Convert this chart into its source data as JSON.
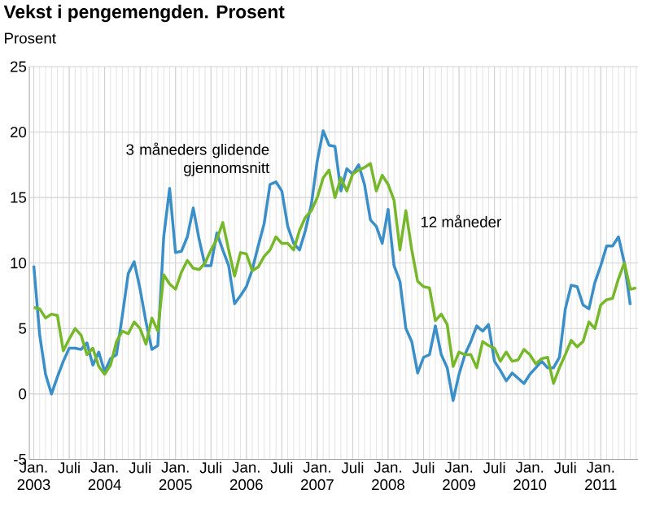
{
  "chart_data": {
    "type": "line",
    "title": "Vekst i pengemengden. Prosent",
    "ylabel": "Prosent",
    "categories": [
      "Jan. 2003",
      null,
      null,
      null,
      null,
      null,
      "Juli",
      null,
      null,
      null,
      null,
      null,
      "Jan. 2004",
      null,
      null,
      null,
      null,
      null,
      "Juli",
      null,
      null,
      null,
      null,
      null,
      "Jan. 2005",
      null,
      null,
      null,
      null,
      null,
      "Juli",
      null,
      null,
      null,
      null,
      null,
      "Jan. 2006",
      null,
      null,
      null,
      null,
      null,
      "Juli",
      null,
      null,
      null,
      null,
      null,
      "Jan. 2007",
      null,
      null,
      null,
      null,
      null,
      "Juli",
      null,
      null,
      null,
      null,
      null,
      "Jan. 2008",
      null,
      null,
      null,
      null,
      null,
      "Juli",
      null,
      null,
      null,
      null,
      null,
      "Jan. 2009",
      null,
      null,
      null,
      null,
      null,
      "Juli",
      null,
      null,
      null,
      null,
      null,
      "Jan. 2010",
      null,
      null,
      null,
      null,
      null,
      "Juli",
      null,
      null,
      null,
      null,
      null,
      "Jan. 2011",
      null,
      null,
      null,
      null,
      null,
      null
    ],
    "series": [
      {
        "name": "3 måneders glidende gjennomsnitt",
        "color": "#3a8fc8",
        "values": [
          9.8,
          4.5,
          1.5,
          0.0,
          1.3,
          2.5,
          3.5,
          3.5,
          3.4,
          3.9,
          2.2,
          3.2,
          1.7,
          2.7,
          3.0,
          6.0,
          9.2,
          10.1,
          8.0,
          5.5,
          3.4,
          3.7,
          12.0,
          15.7,
          10.8,
          10.9,
          12.0,
          14.2,
          11.8,
          9.8,
          9.8,
          12.3,
          11.0,
          9.8,
          6.9,
          7.5,
          8.2,
          9.5,
          11.3,
          13.0,
          16.0,
          16.2,
          15.5,
          12.8,
          11.5,
          11.0,
          12.5,
          14.5,
          17.8,
          20.1,
          19.0,
          18.9,
          15.5,
          17.2,
          16.8,
          17.5,
          16.0,
          13.3,
          12.8,
          11.5,
          14.1,
          9.8,
          8.6,
          5.0,
          4.0,
          1.6,
          2.8,
          3.0,
          5.2,
          3.0,
          2.0,
          -0.5,
          1.5,
          3.0,
          4.0,
          5.2,
          4.8,
          5.3,
          2.5,
          1.8,
          1.0,
          1.6,
          1.2,
          0.8,
          1.5,
          2.0,
          2.5,
          2.0,
          2.0,
          2.8,
          6.5,
          8.3,
          8.2,
          6.8,
          6.5,
          8.5,
          9.8,
          11.3,
          11.3,
          12.0,
          10.0,
          6.8,
          null
        ]
      },
      {
        "name": "12 måneder",
        "color": "#76b82a",
        "values": [
          6.6,
          6.5,
          5.8,
          6.1,
          6.0,
          3.3,
          4.2,
          5.0,
          4.5,
          3.0,
          3.5,
          2.1,
          1.5,
          2.2,
          4.0,
          4.8,
          4.6,
          5.5,
          5.0,
          3.8,
          5.8,
          4.8,
          9.1,
          8.4,
          8.0,
          9.3,
          10.2,
          9.6,
          9.5,
          10.0,
          11.0,
          11.8,
          13.1,
          11.0,
          9.0,
          10.8,
          10.7,
          9.4,
          9.7,
          10.5,
          11.0,
          12.0,
          11.5,
          11.5,
          11.0,
          12.5,
          13.5,
          14.0,
          15.0,
          16.5,
          17.1,
          15.0,
          16.5,
          15.5,
          16.8,
          17.1,
          17.3,
          17.6,
          15.5,
          16.7,
          16.0,
          14.8,
          11.0,
          14.0,
          11.0,
          8.6,
          8.2,
          8.1,
          5.6,
          6.1,
          5.3,
          2.1,
          3.2,
          3.0,
          3.0,
          2.0,
          4.0,
          3.7,
          3.5,
          2.5,
          3.2,
          2.5,
          2.6,
          3.4,
          3.0,
          2.3,
          2.7,
          2.8,
          0.8,
          2.0,
          3.0,
          4.1,
          3.6,
          4.0,
          5.5,
          5.0,
          6.8,
          7.2,
          7.3,
          8.8,
          10.0,
          8.0,
          8.1
        ]
      }
    ],
    "ylim": [
      -5,
      25
    ],
    "yticks": [
      -5,
      0,
      5,
      10,
      15,
      20,
      25
    ],
    "grid": true,
    "legend": false,
    "line_style": "solid",
    "marker": "none"
  }
}
